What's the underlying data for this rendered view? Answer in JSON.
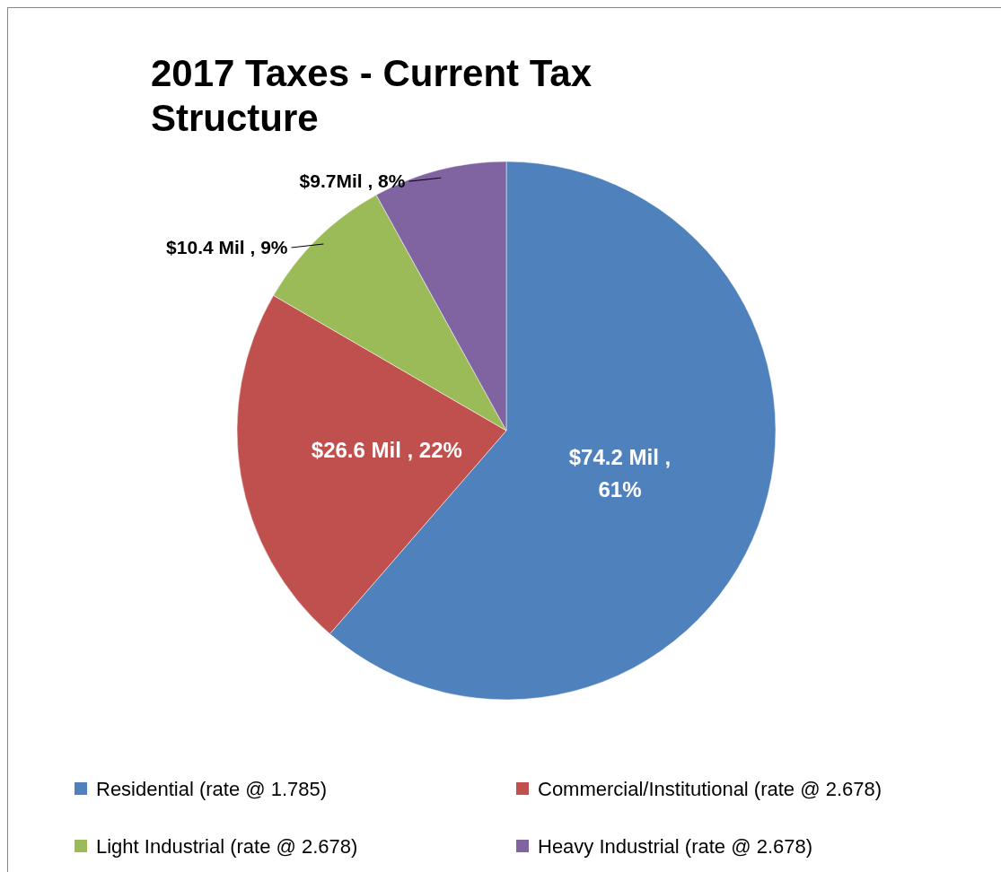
{
  "chart_data": {
    "type": "pie",
    "title": "2017 Taxes - Current Tax Structure",
    "categories": [
      "Residential (rate @ 1.785)",
      "Commercial/Institutional (rate @ 2.678)",
      "Light Industrial (rate @ 2.678)",
      "Heavy Industrial (rate @ 2.678)"
    ],
    "values": [
      74.2,
      26.6,
      10.4,
      9.7
    ],
    "colors": [
      "#4f81bd",
      "#c0504d",
      "#9bbb59",
      "#8064a2"
    ],
    "value_labels": [
      "$74.2 Mil , 61%",
      "$26.6 Mil , 22%",
      "$10.4 Mil , 9%",
      "$9.7Mil , 8%"
    ],
    "legend": "bottom"
  }
}
